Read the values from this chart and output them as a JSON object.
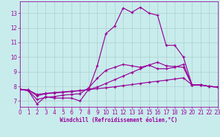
{
  "background_color": "#c8ecec",
  "line_color": "#990099",
  "grid_color": "#aacccc",
  "xlabel": "Windchill (Refroidissement éolien,°C)",
  "xlim": [
    0,
    23
  ],
  "ylim": [
    6.6,
    13.8
  ],
  "yticks": [
    7,
    8,
    9,
    10,
    11,
    12,
    13
  ],
  "xticks": [
    0,
    1,
    2,
    3,
    4,
    5,
    6,
    7,
    8,
    9,
    10,
    11,
    12,
    13,
    14,
    15,
    16,
    17,
    18,
    19,
    20,
    21,
    22,
    23
  ],
  "series1_y": [
    7.8,
    7.7,
    6.8,
    7.3,
    7.2,
    7.2,
    7.2,
    7.0,
    7.8,
    9.4,
    11.6,
    12.1,
    13.35,
    13.05,
    13.4,
    13.0,
    12.85,
    10.8,
    10.8,
    10.0,
    8.1,
    8.1,
    8.0,
    7.95
  ],
  "series2_y": [
    7.8,
    7.7,
    7.1,
    7.25,
    7.3,
    7.4,
    7.45,
    7.5,
    7.9,
    8.55,
    9.1,
    9.3,
    9.5,
    9.4,
    9.3,
    9.45,
    9.2,
    9.2,
    9.3,
    9.5,
    8.1,
    8.1,
    8.0,
    7.95
  ],
  "series3_y": [
    7.8,
    7.75,
    7.35,
    7.5,
    7.55,
    7.6,
    7.65,
    7.7,
    7.78,
    7.95,
    8.2,
    8.45,
    8.7,
    8.95,
    9.2,
    9.45,
    9.65,
    9.4,
    9.35,
    9.3,
    8.1,
    8.1,
    8.0,
    7.95
  ],
  "series4_y": [
    7.8,
    7.75,
    7.45,
    7.52,
    7.58,
    7.62,
    7.67,
    7.72,
    7.78,
    7.84,
    7.9,
    7.97,
    8.05,
    8.12,
    8.2,
    8.28,
    8.35,
    8.42,
    8.5,
    8.58,
    8.1,
    8.1,
    8.0,
    7.95
  ],
  "tick_fontsize": 5.5,
  "xlabel_fontsize": 5.5
}
